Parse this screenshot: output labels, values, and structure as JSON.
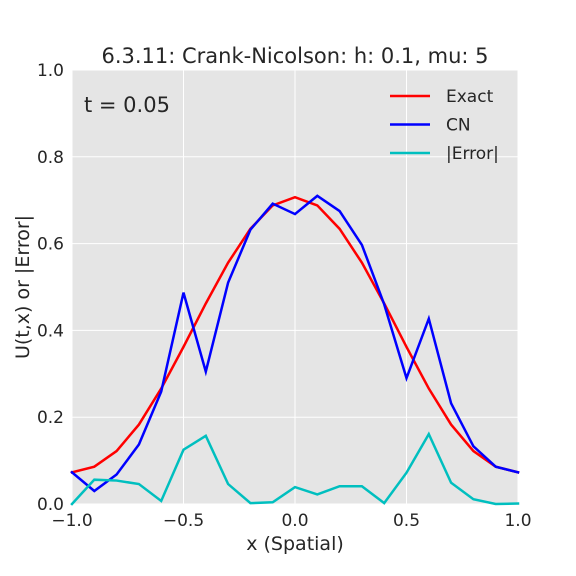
{
  "chart_data": {
    "type": "line",
    "title": "6.3.11: Crank-Nicolson: h: 0.1, mu: 5",
    "xlabel": "x (Spatial)",
    "ylabel": "U(t,x) or |Error|",
    "annotation": "t = 0.05",
    "xlim": [
      -1.0,
      1.0
    ],
    "ylim": [
      0.0,
      1.0
    ],
    "xticks": [
      -1.0,
      -0.5,
      0.0,
      0.5,
      1.0
    ],
    "xtick_labels": [
      "−1.0",
      "−0.5",
      "0.0",
      "0.5",
      "1.0"
    ],
    "yticks": [
      0.0,
      0.2,
      0.4,
      0.6,
      0.8,
      1.0
    ],
    "ytick_labels": [
      "0.0",
      "0.2",
      "0.4",
      "0.6",
      "0.8",
      "1.0"
    ],
    "grid": true,
    "legend_position": "top-right",
    "x": [
      -1.0,
      -0.9,
      -0.8,
      -0.7,
      -0.6,
      -0.5,
      -0.4,
      -0.3,
      -0.2,
      -0.1,
      0.0,
      0.1,
      0.2,
      0.3,
      0.4,
      0.5,
      0.6,
      0.7,
      0.8,
      0.9,
      1.0
    ],
    "series": [
      {
        "name": "Exact",
        "color": "#ff0000",
        "values": [
          0.073,
          0.086,
          0.122,
          0.183,
          0.266,
          0.362,
          0.462,
          0.556,
          0.634,
          0.688,
          0.707,
          0.688,
          0.634,
          0.556,
          0.462,
          0.362,
          0.266,
          0.183,
          0.122,
          0.086,
          0.073
        ]
      },
      {
        "name": "CN",
        "color": "#0000ff",
        "values": [
          0.073,
          0.03,
          0.068,
          0.137,
          0.259,
          0.487,
          0.305,
          0.51,
          0.632,
          0.692,
          0.668,
          0.71,
          0.675,
          0.597,
          0.46,
          0.29,
          0.427,
          0.232,
          0.133,
          0.086,
          0.073
        ]
      },
      {
        "name": "|Error|",
        "color": "#00bfbf",
        "values": [
          0.0,
          0.056,
          0.054,
          0.046,
          0.007,
          0.125,
          0.157,
          0.046,
          0.002,
          0.004,
          0.039,
          0.022,
          0.041,
          0.041,
          0.002,
          0.072,
          0.161,
          0.049,
          0.011,
          0.0,
          0.001
        ]
      }
    ]
  }
}
